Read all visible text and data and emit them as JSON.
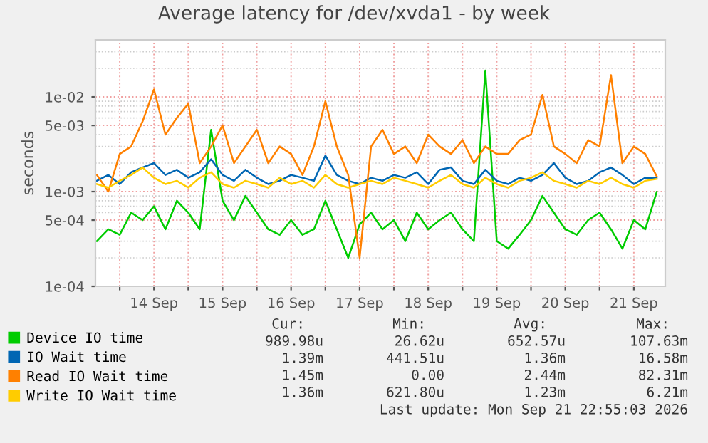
{
  "chart_data": {
    "type": "line",
    "title": "Average latency for /dev/xvda1 - by week",
    "ylabel": "seconds",
    "x": [
      "2026-09-13T16:00",
      "2026-09-13T20:00",
      "2026-09-14T00:00",
      "2026-09-14T04:00",
      "2026-09-14T08:00",
      "2026-09-14T12:00",
      "2026-09-14T16:00",
      "2026-09-14T20:00",
      "2026-09-15T00:00",
      "2026-09-15T04:00",
      "2026-09-15T08:00",
      "2026-09-15T12:00",
      "2026-09-15T16:00",
      "2026-09-15T20:00",
      "2026-09-16T00:00",
      "2026-09-16T04:00",
      "2026-09-16T08:00",
      "2026-09-16T12:00",
      "2026-09-16T16:00",
      "2026-09-16T20:00",
      "2026-09-17T00:00",
      "2026-09-17T04:00",
      "2026-09-17T08:00",
      "2026-09-17T12:00",
      "2026-09-17T16:00",
      "2026-09-17T20:00",
      "2026-09-18T00:00",
      "2026-09-18T04:00",
      "2026-09-18T08:00",
      "2026-09-18T12:00",
      "2026-09-18T16:00",
      "2026-09-18T20:00",
      "2026-09-19T00:00",
      "2026-09-19T04:00",
      "2026-09-19T08:00",
      "2026-09-19T12:00",
      "2026-09-19T16:00",
      "2026-09-19T20:00",
      "2026-09-20T00:00",
      "2026-09-20T04:00",
      "2026-09-20T08:00",
      "2026-09-20T12:00",
      "2026-09-20T16:00",
      "2026-09-20T20:00",
      "2026-09-21T00:00",
      "2026-09-21T04:00",
      "2026-09-21T08:00",
      "2026-09-21T12:00",
      "2026-09-21T16:00",
      "2026-09-21T20:00"
    ],
    "series": [
      {
        "name": "Device IO time",
        "color": "#00cc00",
        "values": [
          0.0003,
          0.0004,
          0.00035,
          0.0006,
          0.0005,
          0.0007,
          0.0004,
          0.0008,
          0.0006,
          0.0004,
          0.0045,
          0.0008,
          0.0005,
          0.0009,
          0.0006,
          0.0004,
          0.00035,
          0.0005,
          0.00035,
          0.0004,
          0.0008,
          0.0004,
          0.0002,
          0.00045,
          0.0006,
          0.0004,
          0.0005,
          0.0003,
          0.0006,
          0.0004,
          0.0005,
          0.0006,
          0.0004,
          0.0003,
          0.019,
          0.0003,
          0.00025,
          0.00035,
          0.0005,
          0.0009,
          0.0006,
          0.0004,
          0.00035,
          0.0005,
          0.0006,
          0.0004,
          0.00025,
          0.0005,
          0.0004,
          0.00099
        ]
      },
      {
        "name": "IO Wait time",
        "color": "#0066b3",
        "values": [
          0.0013,
          0.0015,
          0.0012,
          0.0016,
          0.0018,
          0.002,
          0.0015,
          0.0017,
          0.0014,
          0.0016,
          0.0022,
          0.0015,
          0.0013,
          0.0017,
          0.0014,
          0.0012,
          0.0013,
          0.0015,
          0.0014,
          0.0013,
          0.0024,
          0.0015,
          0.0013,
          0.0012,
          0.0014,
          0.0013,
          0.0015,
          0.0014,
          0.0016,
          0.0012,
          0.0017,
          0.0018,
          0.0013,
          0.0012,
          0.0017,
          0.0013,
          0.0012,
          0.0014,
          0.0013,
          0.0015,
          0.002,
          0.0014,
          0.0012,
          0.0013,
          0.0016,
          0.0018,
          0.0015,
          0.0012,
          0.0014,
          0.00139
        ]
      },
      {
        "name": "Read IO Wait time",
        "color": "#ff8000",
        "values": [
          0.0015,
          0.001,
          0.0025,
          0.003,
          0.0055,
          0.012,
          0.004,
          0.006,
          0.0085,
          0.002,
          0.003,
          0.005,
          0.002,
          0.003,
          0.0045,
          0.002,
          0.003,
          0.0025,
          0.0015,
          0.003,
          0.009,
          0.003,
          0.0015,
          0.0002,
          0.003,
          0.0045,
          0.0025,
          0.003,
          0.002,
          0.004,
          0.003,
          0.0025,
          0.0035,
          0.002,
          0.003,
          0.0025,
          0.0025,
          0.0035,
          0.004,
          0.0105,
          0.003,
          0.0025,
          0.002,
          0.0035,
          0.003,
          0.017,
          0.002,
          0.003,
          0.0025,
          0.00145
        ]
      },
      {
        "name": "Write IO Wait time",
        "color": "#ffcc00",
        "values": [
          0.0012,
          0.0011,
          0.0013,
          0.0015,
          0.0018,
          0.0014,
          0.0012,
          0.0013,
          0.0011,
          0.0014,
          0.0016,
          0.0012,
          0.0011,
          0.0013,
          0.0012,
          0.0011,
          0.0014,
          0.0012,
          0.0013,
          0.0011,
          0.0015,
          0.0012,
          0.0011,
          0.0012,
          0.0013,
          0.0012,
          0.0014,
          0.0013,
          0.0012,
          0.0011,
          0.0013,
          0.0015,
          0.0012,
          0.0011,
          0.0014,
          0.0012,
          0.0011,
          0.0013,
          0.0014,
          0.0016,
          0.0013,
          0.0012,
          0.0011,
          0.0013,
          0.0012,
          0.0014,
          0.0012,
          0.0011,
          0.0013,
          0.00136
        ]
      }
    ],
    "log": "y",
    "ylim": [
      0.0001,
      0.04
    ],
    "yticks": [
      {
        "value": 0.0001,
        "label": "1e-04"
      },
      {
        "value": 0.0005,
        "label": "5e-04"
      },
      {
        "value": 0.001,
        "label": "1e-03"
      },
      {
        "value": 0.005,
        "label": "5e-03"
      },
      {
        "value": 0.01,
        "label": "1e-02"
      }
    ],
    "xlim": [
      "2026-09-13T15:30",
      "2026-09-21T23:00"
    ],
    "xticks": [
      {
        "value": "2026-09-14",
        "label": null
      },
      {
        "value": "2026-09-14T12:00",
        "label": "14 Sep"
      },
      {
        "value": "2026-09-15",
        "label": null
      },
      {
        "value": "2026-09-15T12:00",
        "label": "15 Sep"
      },
      {
        "value": "2026-09-16",
        "label": null
      },
      {
        "value": "2026-09-16T12:00",
        "label": "16 Sep"
      },
      {
        "value": "2026-09-17",
        "label": null
      },
      {
        "value": "2026-09-17T12:00",
        "label": "17 Sep"
      },
      {
        "value": "2026-09-18",
        "label": null
      },
      {
        "value": "2026-09-18T12:00",
        "label": "18 Sep"
      },
      {
        "value": "2026-09-19",
        "label": null
      },
      {
        "value": "2026-09-19T12:00",
        "label": "19 Sep"
      },
      {
        "value": "2026-09-20",
        "label": null
      },
      {
        "value": "2026-09-20T12:00",
        "label": "20 Sep"
      },
      {
        "value": "2026-09-21",
        "label": null
      },
      {
        "value": "2026-09-21T12:00",
        "label": "21 Sep"
      }
    ],
    "grid": true,
    "legend": "bottom",
    "marker": "none",
    "line_style": "solid",
    "annotations": [
      "Cur:",
      "Min:",
      "Avg:",
      "Max:",
      "989.98u",
      "26.62u",
      "652.57u",
      "107.63m",
      "1.39m",
      "441.51u",
      "1.36m",
      "16.58m",
      "1.45m",
      "0.00",
      "2.44m",
      "82.31m",
      "1.36m",
      "621.80u",
      "1.23m",
      "6.21m",
      "Last update: Mon Sep 21 22:55:03 2026"
    ]
  }
}
